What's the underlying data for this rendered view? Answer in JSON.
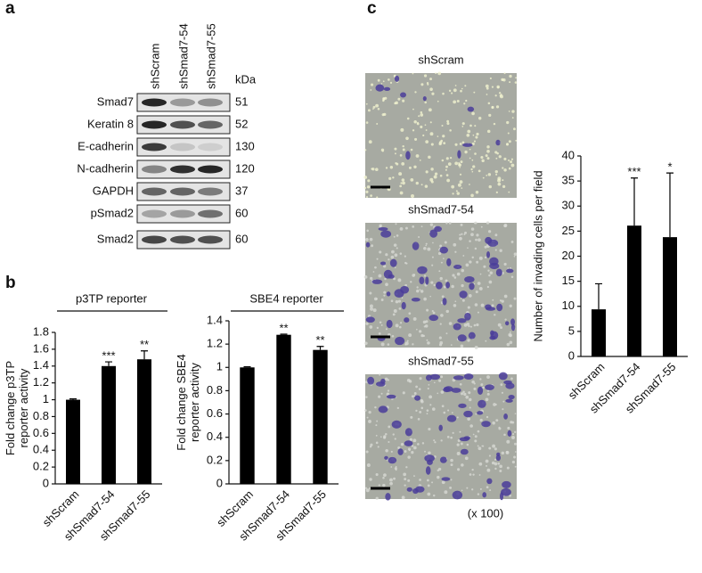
{
  "panels": [
    "a",
    "b",
    "c"
  ],
  "western_blot": {
    "lanes": [
      "shScram",
      "shSmad7-54",
      "shSmad7-55"
    ],
    "unit_label": "kDa",
    "rows": [
      {
        "protein": "Smad7",
        "kda": 51
      },
      {
        "protein": "Keratin 8",
        "kda": 52
      },
      {
        "protein": "E-cadherin",
        "kda": 130
      },
      {
        "protein": "N-cadherin",
        "kda": 120
      },
      {
        "protein": "GAPDH",
        "kda": 37
      },
      {
        "protein": "pSmad2",
        "kda": 60
      },
      {
        "protein": "Smad2",
        "kda": 60
      }
    ]
  },
  "micrographs": {
    "labels": [
      "shScram",
      "shSmad7-54",
      "shSmad7-55"
    ],
    "magnification": "(x 100)"
  },
  "chart_data": [
    {
      "type": "bar",
      "title": "p3TP reporter",
      "ylabel": [
        "Fold change p3TP",
        "reporter activity"
      ],
      "categories": [
        "shScram",
        "shSmad7-54",
        "shSmad7-55"
      ],
      "values": [
        1.0,
        1.4,
        1.48
      ],
      "errors": [
        0.01,
        0.05,
        0.1
      ],
      "significance": [
        null,
        "***",
        "**"
      ],
      "color": "#000000",
      "ylim": [
        0,
        1.8
      ],
      "yticks": [
        0,
        0.2,
        0.4,
        0.6,
        0.8,
        1,
        1.2,
        1.4,
        1.6,
        1.8
      ]
    },
    {
      "type": "bar",
      "title": "SBE4 reporter",
      "ylabel": [
        "Fold change SBE4",
        "reporter activity"
      ],
      "categories": [
        "shScram",
        "shSmad7-54",
        "shSmad7-55"
      ],
      "values": [
        1.0,
        1.28,
        1.15
      ],
      "errors": [
        0.005,
        0.005,
        0.03
      ],
      "significance": [
        null,
        "**",
        "**"
      ],
      "color": "#000000",
      "ylim": [
        0,
        1.4
      ],
      "yticks": [
        0,
        0.2,
        0.4,
        0.6,
        0.8,
        1,
        1.2,
        1.4
      ]
    },
    {
      "type": "bar",
      "ylabel": [
        "Number of invading cells per field"
      ],
      "categories": [
        "shScram",
        "shSmad7-54",
        "shSmad7-55"
      ],
      "values": [
        9.4,
        26.1,
        23.8
      ],
      "errors": [
        5.1,
        9.5,
        12.8
      ],
      "significance": [
        null,
        "***",
        "*"
      ],
      "color": "#000000",
      "ylim": [
        0,
        40
      ],
      "yticks": [
        0,
        5,
        10,
        15,
        20,
        25,
        30,
        35,
        40
      ]
    }
  ]
}
